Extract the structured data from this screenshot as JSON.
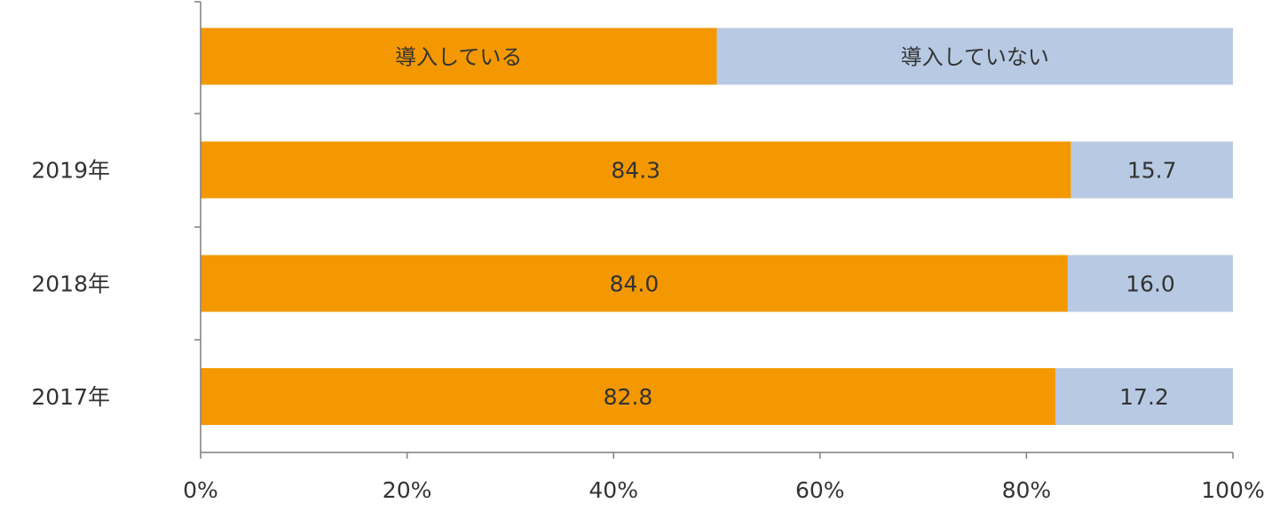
{
  "chart_data": {
    "type": "bar",
    "orientation": "horizontal",
    "stacked": "percent",
    "legend_row": [
      "導入している",
      "導入していない"
    ],
    "categories": [
      "2019年",
      "2018年",
      "2017年"
    ],
    "series": [
      {
        "values": [
          84.3,
          84.0,
          82.8
        ],
        "labels": [
          "84.3",
          "84.0",
          "82.8"
        ],
        "color": "#F39800"
      },
      {
        "values": [
          15.7,
          16.0,
          17.2
        ],
        "labels": [
          "15.7",
          "16.0",
          "17.2"
        ],
        "color": "#B8CAE3"
      }
    ],
    "xticks": [
      "0%",
      "20%",
      "40%",
      "60%",
      "80%",
      "100%"
    ],
    "xlim": [
      0,
      100
    ],
    "grid": false
  }
}
